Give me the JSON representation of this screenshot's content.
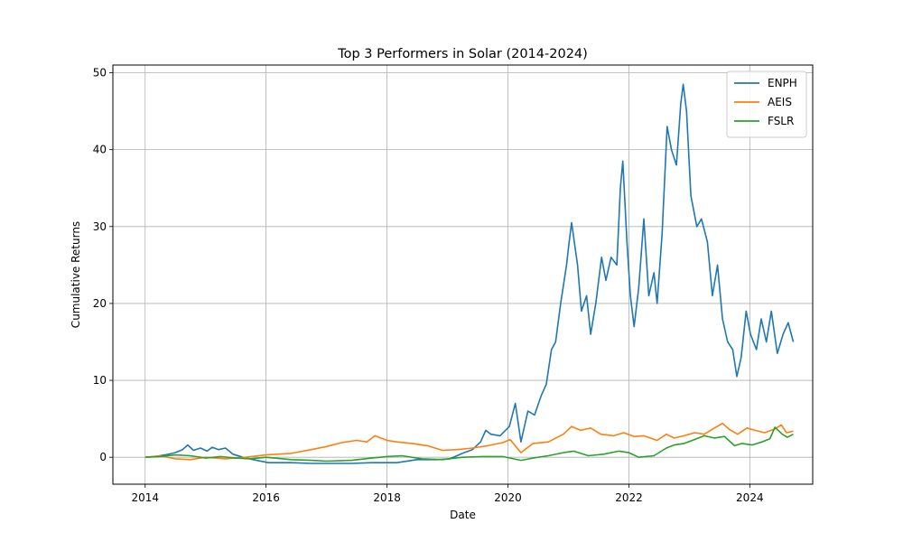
{
  "chart_data": {
    "type": "line",
    "title": "Top 3 Performers in Solar (2014-2024)",
    "xlabel": "Date",
    "ylabel": "Cumulative Returns",
    "x_axis_type": "date",
    "xlim": [
      "2013-06-20",
      "2025-01-15"
    ],
    "ylim": [
      -3.5,
      51
    ],
    "xticks": [
      {
        "date": "2014-01-01",
        "label": "2014"
      },
      {
        "date": "2016-01-01",
        "label": "2016"
      },
      {
        "date": "2018-01-01",
        "label": "2018"
      },
      {
        "date": "2020-01-01",
        "label": "2020"
      },
      {
        "date": "2022-01-01",
        "label": "2022"
      },
      {
        "date": "2024-01-01",
        "label": "2024"
      }
    ],
    "yticks": [
      {
        "value": 0,
        "label": "0"
      },
      {
        "value": 10,
        "label": "10"
      },
      {
        "value": 20,
        "label": "20"
      },
      {
        "value": 30,
        "label": "30"
      },
      {
        "value": 40,
        "label": "40"
      },
      {
        "value": 50,
        "label": "50"
      }
    ],
    "grid": true,
    "legend_position": "top-right",
    "series": [
      {
        "name": "ENPH",
        "color": "#1f77b4",
        "points": [
          [
            "2014-01-02",
            0.0
          ],
          [
            "2014-03-01",
            0.1
          ],
          [
            "2014-05-01",
            0.3
          ],
          [
            "2014-07-01",
            0.6
          ],
          [
            "2014-08-15",
            1.0
          ],
          [
            "2014-09-15",
            1.6
          ],
          [
            "2014-10-20",
            0.9
          ],
          [
            "2014-12-01",
            1.2
          ],
          [
            "2015-01-10",
            0.8
          ],
          [
            "2015-02-10",
            1.3
          ],
          [
            "2015-03-20",
            1.0
          ],
          [
            "2015-05-01",
            1.2
          ],
          [
            "2015-06-15",
            0.4
          ],
          [
            "2015-08-15",
            0.0
          ],
          [
            "2015-10-15",
            -0.3
          ],
          [
            "2016-01-15",
            -0.7
          ],
          [
            "2016-06-01",
            -0.7
          ],
          [
            "2016-10-01",
            -0.8
          ],
          [
            "2017-02-01",
            -0.8
          ],
          [
            "2017-06-01",
            -0.8
          ],
          [
            "2017-10-01",
            -0.7
          ],
          [
            "2018-03-01",
            -0.7
          ],
          [
            "2018-07-01",
            -0.3
          ],
          [
            "2018-11-01",
            -0.3
          ],
          [
            "2019-01-15",
            -0.2
          ],
          [
            "2019-04-01",
            0.5
          ],
          [
            "2019-06-01",
            1.0
          ],
          [
            "2019-07-20",
            2.0
          ],
          [
            "2019-08-20",
            3.5
          ],
          [
            "2019-09-20",
            3.0
          ],
          [
            "2019-11-15",
            2.8
          ],
          [
            "2020-01-10",
            4.0
          ],
          [
            "2020-02-15",
            7.0
          ],
          [
            "2020-03-20",
            2.0
          ],
          [
            "2020-05-01",
            6.0
          ],
          [
            "2020-06-10",
            5.5
          ],
          [
            "2020-07-20",
            8.0
          ],
          [
            "2020-08-20",
            9.5
          ],
          [
            "2020-09-20",
            14.0
          ],
          [
            "2020-10-15",
            15.0
          ],
          [
            "2020-11-15",
            20.0
          ],
          [
            "2020-12-20",
            25.0
          ],
          [
            "2021-01-05",
            28.0
          ],
          [
            "2021-01-20",
            30.5
          ],
          [
            "2021-02-25",
            25.0
          ],
          [
            "2021-03-20",
            19.0
          ],
          [
            "2021-04-20",
            21.0
          ],
          [
            "2021-05-15",
            16.0
          ],
          [
            "2021-06-15",
            20.0
          ],
          [
            "2021-07-20",
            26.0
          ],
          [
            "2021-08-15",
            23.0
          ],
          [
            "2021-09-15",
            26.0
          ],
          [
            "2021-10-20",
            25.0
          ],
          [
            "2021-11-10",
            35.0
          ],
          [
            "2021-11-25",
            38.5
          ],
          [
            "2021-12-20",
            28.0
          ],
          [
            "2022-01-10",
            21.0
          ],
          [
            "2022-02-01",
            17.0
          ],
          [
            "2022-03-01",
            22.0
          ],
          [
            "2022-04-01",
            31.0
          ],
          [
            "2022-05-01",
            21.0
          ],
          [
            "2022-06-01",
            24.0
          ],
          [
            "2022-06-20",
            20.0
          ],
          [
            "2022-07-20",
            29.0
          ],
          [
            "2022-08-20",
            43.0
          ],
          [
            "2022-09-15",
            40.0
          ],
          [
            "2022-10-15",
            38.0
          ],
          [
            "2022-11-10",
            46.0
          ],
          [
            "2022-11-25",
            48.5
          ],
          [
            "2022-12-15",
            45.0
          ],
          [
            "2023-01-10",
            34.0
          ],
          [
            "2023-02-15",
            30.0
          ],
          [
            "2023-03-15",
            31.0
          ],
          [
            "2023-04-20",
            28.0
          ],
          [
            "2023-05-20",
            21.0
          ],
          [
            "2023-06-20",
            25.0
          ],
          [
            "2023-07-20",
            18.0
          ],
          [
            "2023-08-20",
            15.0
          ],
          [
            "2023-09-20",
            14.0
          ],
          [
            "2023-10-15",
            10.5
          ],
          [
            "2023-11-10",
            13.0
          ],
          [
            "2023-12-10",
            19.0
          ],
          [
            "2024-01-05",
            16.0
          ],
          [
            "2024-02-10",
            14.0
          ],
          [
            "2024-03-10",
            18.0
          ],
          [
            "2024-04-10",
            15.0
          ],
          [
            "2024-05-10",
            19.0
          ],
          [
            "2024-06-15",
            13.5
          ],
          [
            "2024-07-20",
            16.0
          ],
          [
            "2024-08-20",
            17.5
          ],
          [
            "2024-09-20",
            15.0
          ]
        ]
      },
      {
        "name": "AEIS",
        "color": "#ff7f0e",
        "points": [
          [
            "2014-01-02",
            0.0
          ],
          [
            "2014-04-01",
            0.2
          ],
          [
            "2014-07-01",
            -0.2
          ],
          [
            "2014-10-01",
            -0.3
          ],
          [
            "2015-01-01",
            0.0
          ],
          [
            "2015-05-01",
            -0.2
          ],
          [
            "2015-09-01",
            0.0
          ],
          [
            "2016-01-01",
            0.3
          ],
          [
            "2016-06-01",
            0.5
          ],
          [
            "2016-10-01",
            1.0
          ],
          [
            "2017-01-01",
            1.4
          ],
          [
            "2017-04-01",
            1.9
          ],
          [
            "2017-07-01",
            2.2
          ],
          [
            "2017-09-01",
            2.0
          ],
          [
            "2017-10-20",
            2.8
          ],
          [
            "2018-01-01",
            2.2
          ],
          [
            "2018-03-01",
            2.0
          ],
          [
            "2018-06-01",
            1.8
          ],
          [
            "2018-09-01",
            1.5
          ],
          [
            "2018-12-01",
            0.9
          ],
          [
            "2019-03-01",
            1.0
          ],
          [
            "2019-06-01",
            1.2
          ],
          [
            "2019-09-01",
            1.5
          ],
          [
            "2019-12-01",
            1.9
          ],
          [
            "2020-01-15",
            2.3
          ],
          [
            "2020-03-20",
            0.6
          ],
          [
            "2020-06-01",
            1.8
          ],
          [
            "2020-09-01",
            2.0
          ],
          [
            "2020-12-01",
            3.0
          ],
          [
            "2021-01-20",
            4.0
          ],
          [
            "2021-03-15",
            3.5
          ],
          [
            "2021-05-15",
            3.8
          ],
          [
            "2021-07-15",
            3.0
          ],
          [
            "2021-10-01",
            2.8
          ],
          [
            "2021-12-01",
            3.2
          ],
          [
            "2022-02-01",
            2.7
          ],
          [
            "2022-04-01",
            2.8
          ],
          [
            "2022-06-20",
            2.2
          ],
          [
            "2022-08-15",
            3.0
          ],
          [
            "2022-10-01",
            2.5
          ],
          [
            "2022-12-01",
            2.8
          ],
          [
            "2023-02-01",
            3.2
          ],
          [
            "2023-04-01",
            3.0
          ],
          [
            "2023-06-01",
            3.8
          ],
          [
            "2023-07-20",
            4.4
          ],
          [
            "2023-09-01",
            3.6
          ],
          [
            "2023-10-20",
            3.0
          ],
          [
            "2023-12-15",
            3.8
          ],
          [
            "2024-02-01",
            3.5
          ],
          [
            "2024-04-01",
            3.2
          ],
          [
            "2024-06-01",
            3.7
          ],
          [
            "2024-07-10",
            4.2
          ],
          [
            "2024-08-10",
            3.2
          ],
          [
            "2024-09-20",
            3.4
          ]
        ]
      },
      {
        "name": "FSLR",
        "color": "#2ca02c",
        "points": [
          [
            "2014-01-02",
            0.0
          ],
          [
            "2014-04-01",
            0.1
          ],
          [
            "2014-07-01",
            0.3
          ],
          [
            "2014-10-01",
            0.2
          ],
          [
            "2015-01-01",
            -0.1
          ],
          [
            "2015-04-01",
            0.1
          ],
          [
            "2015-07-01",
            -0.1
          ],
          [
            "2015-10-01",
            -0.2
          ],
          [
            "2016-01-01",
            0.0
          ],
          [
            "2016-06-01",
            -0.3
          ],
          [
            "2016-10-01",
            -0.4
          ],
          [
            "2017-01-01",
            -0.5
          ],
          [
            "2017-06-01",
            -0.4
          ],
          [
            "2017-10-01",
            -0.1
          ],
          [
            "2018-01-01",
            0.1
          ],
          [
            "2018-04-01",
            0.2
          ],
          [
            "2018-08-01",
            -0.2
          ],
          [
            "2018-12-01",
            -0.3
          ],
          [
            "2019-04-01",
            0.0
          ],
          [
            "2019-08-01",
            0.1
          ],
          [
            "2019-12-01",
            0.1
          ],
          [
            "2020-03-20",
            -0.4
          ],
          [
            "2020-06-01",
            -0.1
          ],
          [
            "2020-09-01",
            0.2
          ],
          [
            "2020-12-01",
            0.6
          ],
          [
            "2021-02-01",
            0.8
          ],
          [
            "2021-05-01",
            0.2
          ],
          [
            "2021-08-01",
            0.4
          ],
          [
            "2021-11-01",
            0.8
          ],
          [
            "2022-01-01",
            0.6
          ],
          [
            "2022-03-01",
            0.0
          ],
          [
            "2022-06-01",
            0.2
          ],
          [
            "2022-08-15",
            1.2
          ],
          [
            "2022-10-01",
            1.6
          ],
          [
            "2022-12-01",
            1.8
          ],
          [
            "2023-02-01",
            2.3
          ],
          [
            "2023-04-01",
            2.8
          ],
          [
            "2023-06-01",
            2.5
          ],
          [
            "2023-08-01",
            2.7
          ],
          [
            "2023-10-01",
            1.5
          ],
          [
            "2023-11-15",
            1.8
          ],
          [
            "2024-01-15",
            1.6
          ],
          [
            "2024-03-15",
            2.0
          ],
          [
            "2024-05-01",
            2.4
          ],
          [
            "2024-06-01",
            3.9
          ],
          [
            "2024-07-15",
            3.0
          ],
          [
            "2024-08-15",
            2.6
          ],
          [
            "2024-09-20",
            3.0
          ]
        ]
      }
    ]
  }
}
